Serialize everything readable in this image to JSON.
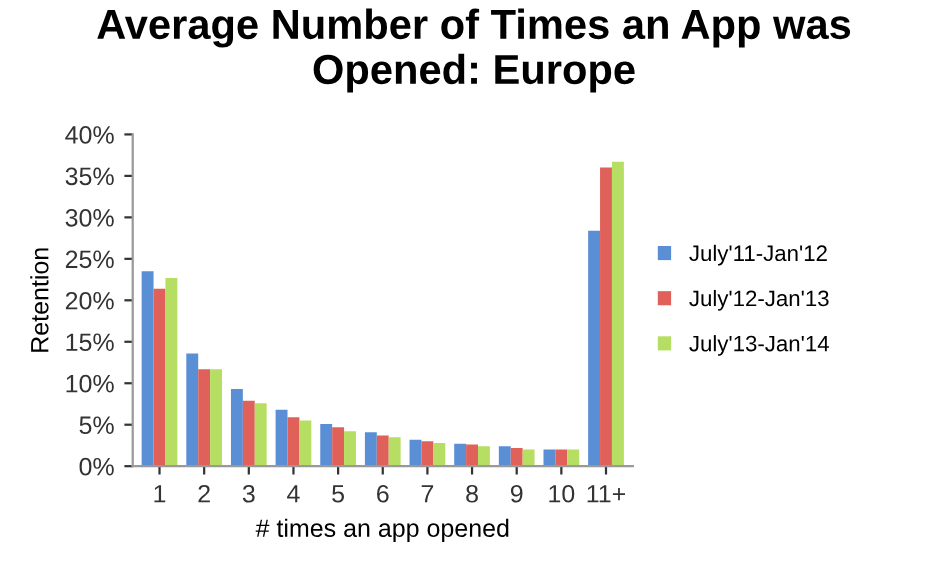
{
  "chart_data": {
    "type": "bar",
    "title": "Average Number of Times an App was\nOpened: Europe",
    "xlabel": "# times an app opened",
    "ylabel": "Retention",
    "categories": [
      "1",
      "2",
      "3",
      "4",
      "5",
      "6",
      "7",
      "8",
      "9",
      "10",
      "11+"
    ],
    "series": [
      {
        "name": "July'11-Jan'12",
        "color": "#5a8fd6",
        "values": [
          23.5,
          13.6,
          9.3,
          6.8,
          5.1,
          4.1,
          3.2,
          2.7,
          2.4,
          2.0,
          28.4
        ]
      },
      {
        "name": "July'12-Jan'13",
        "color": "#e0605a",
        "values": [
          21.4,
          11.7,
          7.9,
          5.9,
          4.7,
          3.7,
          3.0,
          2.6,
          2.2,
          2.0,
          36.0
        ]
      },
      {
        "name": "July'13-Jan'14",
        "color": "#b5de62",
        "values": [
          22.7,
          11.7,
          7.6,
          5.5,
          4.2,
          3.5,
          2.8,
          2.4,
          2.0,
          2.0,
          36.7
        ]
      }
    ],
    "ylim": [
      0,
      40
    ],
    "yticks": [
      {
        "value": 0,
        "label": "0%"
      },
      {
        "value": 5,
        "label": "5%"
      },
      {
        "value": 10,
        "label": "10%"
      },
      {
        "value": 15,
        "label": "15%"
      },
      {
        "value": 20,
        "label": "20%"
      },
      {
        "value": 25,
        "label": "25%"
      },
      {
        "value": 30,
        "label": "30%"
      },
      {
        "value": 35,
        "label": "35%"
      },
      {
        "value": 40,
        "label": "40%"
      }
    ],
    "legend": "right",
    "grid": false
  }
}
